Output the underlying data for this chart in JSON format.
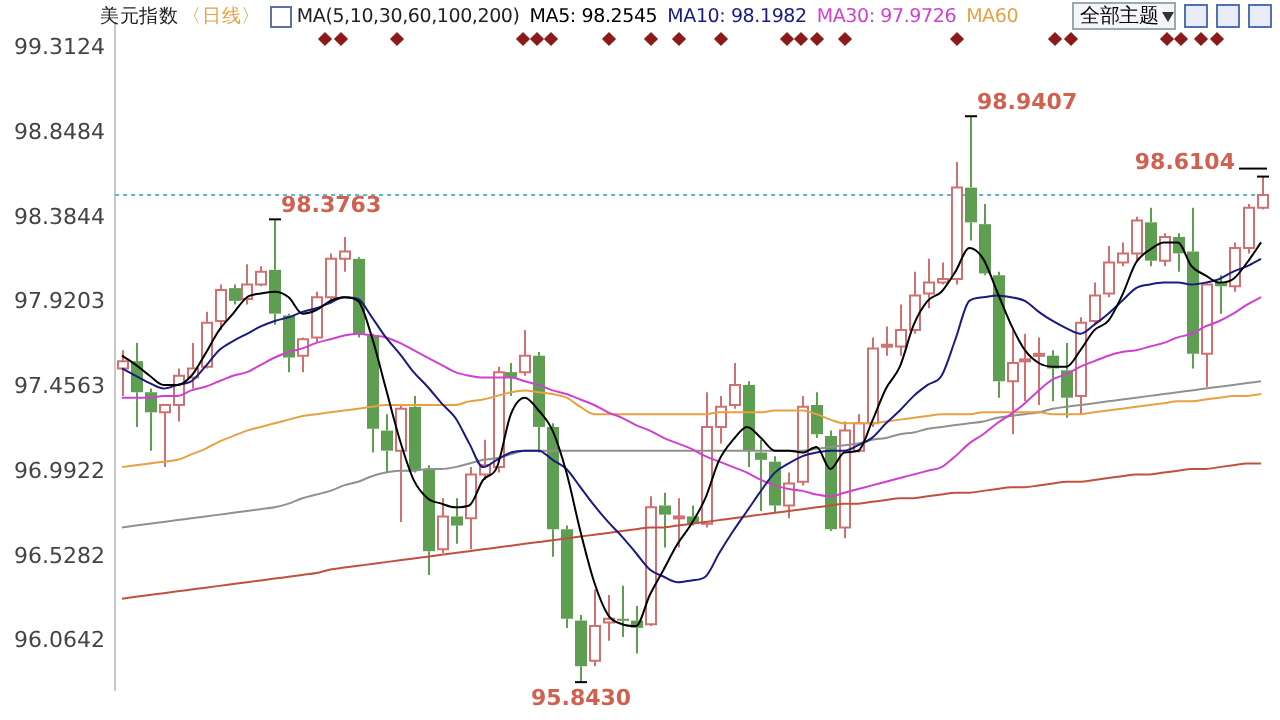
{
  "chart_data": {
    "type": "candlestick",
    "title": "美元指数",
    "subtitle": "〈日线〉",
    "categories": [
      null,
      null,
      null,
      null,
      null,
      null,
      null,
      null,
      null,
      null,
      null,
      null,
      null,
      null,
      null,
      null,
      null,
      null,
      null,
      null,
      null,
      null,
      null,
      null,
      null,
      null,
      null,
      null,
      null,
      null,
      null,
      null,
      null,
      null,
      null,
      null,
      null,
      null,
      null,
      null,
      null,
      null,
      null,
      null,
      null,
      null,
      null,
      null,
      null,
      null,
      null,
      null,
      null,
      null,
      null,
      null,
      null,
      null,
      null,
      null,
      null,
      null,
      null,
      null,
      null,
      null,
      null,
      null,
      null,
      null,
      null,
      null,
      null,
      null,
      null,
      null,
      null,
      null,
      null,
      null,
      null,
      null,
      null
    ],
    "ohlc": [
      [
        97.56,
        97.66,
        97.41,
        97.6
      ],
      [
        97.6,
        97.7,
        97.24,
        97.43
      ],
      [
        97.43,
        97.45,
        97.11,
        97.32
      ],
      [
        97.32,
        97.36,
        97.02,
        97.36
      ],
      [
        97.36,
        97.56,
        97.27,
        97.52
      ],
      [
        97.51,
        97.7,
        97.45,
        97.56
      ],
      [
        97.57,
        97.87,
        97.56,
        97.81
      ],
      [
        97.82,
        98.02,
        97.77,
        97.99
      ],
      [
        98.0,
        98.02,
        97.91,
        97.93
      ],
      [
        97.94,
        98.13,
        97.91,
        98.02
      ],
      [
        98.02,
        98.12,
        98.01,
        98.09
      ],
      [
        98.1,
        98.3763,
        97.8,
        97.86
      ],
      [
        97.85,
        97.86,
        97.54,
        97.62
      ],
      [
        97.63,
        97.73,
        97.54,
        97.72
      ],
      [
        97.73,
        97.98,
        97.7,
        97.95
      ],
      [
        97.95,
        98.19,
        97.93,
        98.16
      ],
      [
        98.16,
        98.28,
        98.09,
        98.2
      ],
      [
        98.16,
        98.17,
        97.73,
        97.75
      ],
      [
        97.74,
        97.75,
        97.1,
        97.23
      ],
      [
        97.22,
        97.31,
        96.99,
        97.11
      ],
      [
        97.11,
        97.36,
        96.72,
        97.34
      ],
      [
        97.35,
        97.41,
        96.99,
        97.0
      ],
      [
        97.01,
        97.03,
        96.43,
        96.56
      ],
      [
        96.57,
        96.85,
        96.55,
        96.75
      ],
      [
        96.75,
        96.85,
        96.6,
        96.7
      ],
      [
        96.74,
        97.02,
        96.57,
        96.98
      ],
      [
        96.98,
        97.17,
        96.95,
        97.03
      ],
      [
        97.02,
        97.57,
        96.99,
        97.54
      ],
      [
        97.54,
        97.59,
        97.41,
        97.51
      ],
      [
        97.54,
        97.77,
        97.52,
        97.63
      ],
      [
        97.63,
        97.65,
        97.1,
        97.24
      ],
      [
        97.24,
        97.26,
        96.53,
        96.68
      ],
      [
        96.68,
        96.7,
        96.14,
        96.19
      ],
      [
        96.18,
        96.21,
        95.843,
        95.93
      ],
      [
        95.96,
        96.35,
        95.93,
        96.15
      ],
      [
        96.17,
        96.32,
        96.07,
        96.19
      ],
      [
        96.19,
        96.37,
        96.09,
        96.18
      ],
      [
        96.18,
        96.26,
        96.0,
        96.14
      ],
      [
        96.16,
        96.86,
        96.15,
        96.8
      ],
      [
        96.81,
        96.88,
        96.58,
        96.76
      ],
      [
        96.74,
        96.85,
        96.58,
        96.75
      ],
      [
        96.75,
        96.81,
        96.7,
        96.71
      ],
      [
        96.71,
        97.43,
        96.69,
        97.24
      ],
      [
        97.24,
        97.41,
        97.15,
        97.35
      ],
      [
        97.36,
        97.59,
        97.34,
        97.47
      ],
      [
        97.47,
        97.49,
        97.02,
        97.11
      ],
      [
        97.1,
        97.17,
        96.78,
        97.06
      ],
      [
        97.05,
        97.08,
        96.77,
        96.81
      ],
      [
        96.81,
        96.99,
        96.74,
        96.93
      ],
      [
        96.94,
        97.41,
        96.92,
        97.35
      ],
      [
        97.36,
        97.43,
        97.18,
        97.2
      ],
      [
        97.19,
        97.22,
        96.67,
        96.68
      ],
      [
        96.69,
        97.27,
        96.63,
        97.22
      ],
      [
        97.11,
        97.31,
        97.1,
        97.26
      ],
      [
        97.26,
        97.73,
        97.24,
        97.67
      ],
      [
        97.68,
        97.79,
        97.63,
        97.69
      ],
      [
        97.68,
        97.91,
        97.63,
        97.77
      ],
      [
        97.77,
        98.09,
        97.75,
        97.96
      ],
      [
        97.97,
        98.16,
        97.89,
        98.03
      ],
      [
        98.03,
        98.14,
        98.02,
        98.05
      ],
      [
        98.05,
        98.69,
        98.02,
        98.55
      ],
      [
        98.55,
        98.9407,
        98.26,
        98.36
      ],
      [
        98.35,
        98.46,
        98.07,
        98.08
      ],
      [
        98.07,
        98.09,
        97.4,
        97.49
      ],
      [
        97.49,
        97.77,
        97.2,
        97.59
      ],
      [
        97.6,
        97.75,
        97.38,
        97.61
      ],
      [
        97.63,
        97.73,
        97.36,
        97.64
      ],
      [
        97.63,
        97.66,
        97.38,
        97.56
      ],
      [
        97.55,
        97.7,
        97.29,
        97.4
      ],
      [
        97.41,
        97.84,
        97.31,
        97.81
      ],
      [
        97.82,
        98.03,
        97.8,
        97.96
      ],
      [
        97.97,
        98.23,
        97.95,
        98.14
      ],
      [
        98.14,
        98.25,
        98.12,
        98.19
      ],
      [
        98.19,
        98.39,
        98.15,
        98.37
      ],
      [
        98.36,
        98.44,
        98.12,
        98.15
      ],
      [
        98.15,
        98.3,
        98.12,
        98.28
      ],
      [
        98.28,
        98.3,
        98.09,
        98.19
      ],
      [
        98.2,
        98.44,
        97.56,
        97.64
      ],
      [
        97.64,
        98.03,
        97.46,
        98.02
      ],
      [
        98.03,
        98.07,
        97.86,
        98.01
      ],
      [
        98.01,
        98.25,
        97.98,
        98.22
      ],
      [
        98.22,
        98.46,
        98.19,
        98.44
      ],
      [
        98.44,
        98.6104,
        98.43,
        98.51
      ]
    ],
    "series": [
      {
        "type": "line",
        "name": "MA5: 98.2545",
        "color": "#000000",
        "values": [
          97.63,
          97.58,
          97.52,
          97.47,
          97.47,
          97.52,
          97.64,
          97.77,
          97.86,
          97.95,
          97.97,
          97.98,
          97.95,
          97.86,
          97.88,
          97.93,
          97.95,
          97.93,
          97.73,
          97.45,
          97.17,
          96.95,
          96.85,
          96.82,
          96.8,
          96.81,
          96.95,
          97.02,
          97.31,
          97.4,
          97.33,
          97.22,
          96.99,
          96.67,
          96.39,
          96.21,
          96.16,
          96.15,
          96.32,
          96.46,
          96.6,
          96.71,
          96.85,
          97.06,
          97.17,
          97.24,
          97.18,
          97.11,
          97.11,
          97.1,
          97.13,
          97.01,
          97.1,
          97.11,
          97.27,
          97.45,
          97.57,
          97.8,
          97.93,
          97.98,
          98.09,
          98.22,
          98.16,
          97.98,
          97.8,
          97.66,
          97.59,
          97.57,
          97.57,
          97.66,
          97.77,
          97.82,
          97.96,
          98.14,
          98.21,
          98.25,
          98.25,
          98.12,
          98.07,
          98.03,
          98.05,
          98.14,
          98.25
        ]
      },
      {
        "type": "line",
        "name": "MA10: 98.1982",
        "color": "#1a1a80",
        "values": [
          97.56,
          97.52,
          97.48,
          97.45,
          97.47,
          97.49,
          97.57,
          97.66,
          97.71,
          97.75,
          97.79,
          97.82,
          97.84,
          97.87,
          97.89,
          97.92,
          97.95,
          97.94,
          97.84,
          97.73,
          97.64,
          97.54,
          97.46,
          97.37,
          97.29,
          97.15,
          97.02,
          97.06,
          97.1,
          97.11,
          97.11,
          97.06,
          97.01,
          96.91,
          96.81,
          96.72,
          96.64,
          96.55,
          96.46,
          96.42,
          96.39,
          96.4,
          96.42,
          96.55,
          96.67,
          96.78,
          96.89,
          96.99,
          97.04,
          97.08,
          97.1,
          97.11,
          97.11,
          97.14,
          97.18,
          97.26,
          97.33,
          97.41,
          97.47,
          97.52,
          97.72,
          97.93,
          97.95,
          97.96,
          97.95,
          97.93,
          97.87,
          97.82,
          97.78,
          97.75,
          97.8,
          97.86,
          97.93,
          98.0,
          98.02,
          98.03,
          98.03,
          98.02,
          98.03,
          98.05,
          98.09,
          98.12,
          98.16
        ]
      },
      {
        "type": "line",
        "name": "MA30: 97.9726",
        "color": "#d040d0",
        "values": [
          97.4,
          97.4,
          97.4,
          97.41,
          97.41,
          97.44,
          97.46,
          97.49,
          97.52,
          97.54,
          97.58,
          97.62,
          97.65,
          97.67,
          97.7,
          97.72,
          97.74,
          97.75,
          97.74,
          97.73,
          97.7,
          97.66,
          97.62,
          97.58,
          97.54,
          97.52,
          97.51,
          97.51,
          97.51,
          97.49,
          97.47,
          97.44,
          97.42,
          97.39,
          97.36,
          97.32,
          97.29,
          97.25,
          97.22,
          97.18,
          97.15,
          97.12,
          97.08,
          97.05,
          97.02,
          96.99,
          96.95,
          96.92,
          96.9,
          96.89,
          96.87,
          96.86,
          96.88,
          96.9,
          96.92,
          96.94,
          96.96,
          96.98,
          97.0,
          97.02,
          97.08,
          97.15,
          97.2,
          97.26,
          97.31,
          97.37,
          97.44,
          97.5,
          97.53,
          97.57,
          97.6,
          97.63,
          97.65,
          97.66,
          97.68,
          97.7,
          97.73,
          97.75,
          97.79,
          97.82,
          97.86,
          97.91,
          97.95
        ]
      },
      {
        "type": "line",
        "name": "MA60",
        "color": "#e8a040",
        "values": [
          97.02,
          97.03,
          97.04,
          97.05,
          97.06,
          97.09,
          97.12,
          97.16,
          97.19,
          97.22,
          97.24,
          97.26,
          97.28,
          97.3,
          97.31,
          97.32,
          97.33,
          97.34,
          97.35,
          97.36,
          97.36,
          97.36,
          97.36,
          97.36,
          97.36,
          97.38,
          97.39,
          97.41,
          97.43,
          97.44,
          97.43,
          97.42,
          97.4,
          97.35,
          97.31,
          97.31,
          97.31,
          97.31,
          97.31,
          97.31,
          97.31,
          97.31,
          97.31,
          97.32,
          97.32,
          97.32,
          97.32,
          97.33,
          97.33,
          97.33,
          97.31,
          97.28,
          97.26,
          97.26,
          97.26,
          97.27,
          97.28,
          97.29,
          97.3,
          97.31,
          97.31,
          97.31,
          97.32,
          97.32,
          97.32,
          97.32,
          97.32,
          97.31,
          97.31,
          97.31,
          97.32,
          97.33,
          97.34,
          97.35,
          97.36,
          97.37,
          97.38,
          97.38,
          97.39,
          97.4,
          97.41,
          97.41,
          97.42
        ]
      },
      {
        "type": "line",
        "color": "#909090",
        "values": [
          96.69,
          96.7,
          96.71,
          96.72,
          96.73,
          96.74,
          96.75,
          96.76,
          96.77,
          96.78,
          96.79,
          96.8,
          96.82,
          96.85,
          96.87,
          96.89,
          96.92,
          96.94,
          96.97,
          96.99,
          97.0,
          97.0,
          97.01,
          97.01,
          97.02,
          97.04,
          97.06,
          97.07,
          97.09,
          97.11,
          97.11,
          97.11,
          97.11,
          97.11,
          97.11,
          97.11,
          97.11,
          97.11,
          97.11,
          97.11,
          97.11,
          97.11,
          97.11,
          97.11,
          97.11,
          97.11,
          97.11,
          97.11,
          97.11,
          97.11,
          97.12,
          97.13,
          97.14,
          97.15,
          97.17,
          97.18,
          97.2,
          97.21,
          97.23,
          97.24,
          97.25,
          97.26,
          97.27,
          97.29,
          97.3,
          97.31,
          97.32,
          97.34,
          97.35,
          97.36,
          97.37,
          97.38,
          97.39,
          97.4,
          97.41,
          97.42,
          97.43,
          97.44,
          97.45,
          97.46,
          97.47,
          97.48,
          97.49
        ]
      },
      {
        "type": "line",
        "color": "#c05040",
        "values": [
          96.3,
          96.31,
          96.32,
          96.33,
          96.34,
          96.35,
          96.36,
          96.37,
          96.38,
          96.39,
          96.4,
          96.41,
          96.42,
          96.43,
          96.44,
          96.46,
          96.47,
          96.48,
          96.49,
          96.5,
          96.51,
          96.52,
          96.53,
          96.54,
          96.55,
          96.56,
          96.57,
          96.58,
          96.59,
          96.6,
          96.61,
          96.62,
          96.63,
          96.64,
          96.65,
          96.66,
          96.67,
          96.68,
          96.69,
          96.69,
          96.7,
          96.71,
          96.72,
          96.73,
          96.74,
          96.75,
          96.76,
          96.77,
          96.78,
          96.79,
          96.8,
          96.81,
          96.82,
          96.82,
          96.83,
          96.84,
          96.85,
          96.85,
          96.86,
          96.87,
          96.88,
          96.88,
          96.89,
          96.9,
          96.91,
          96.91,
          96.92,
          96.93,
          96.94,
          96.94,
          96.95,
          96.96,
          96.97,
          96.98,
          96.98,
          96.99,
          97.0,
          97.01,
          97.01,
          97.02,
          97.03,
          97.04,
          97.04
        ]
      }
    ],
    "ylim": [
      95.8,
      99.45
    ],
    "yticks": [
      96.0642,
      96.5282,
      96.9922,
      97.4563,
      97.9203,
      98.3844,
      98.8484,
      99.3124
    ],
    "ref_lines": [
      {
        "axis": "y",
        "value": 98.51,
        "color": "#5bb8d0",
        "line_style": "dotted"
      }
    ],
    "annotations": [
      "98.3763",
      "98.9407",
      "95.8430",
      "98.6104",
      "MA(5,10,30,60,100,200)",
      "全部主题"
    ],
    "legend": "top",
    "tick_labels": "y"
  }
}
